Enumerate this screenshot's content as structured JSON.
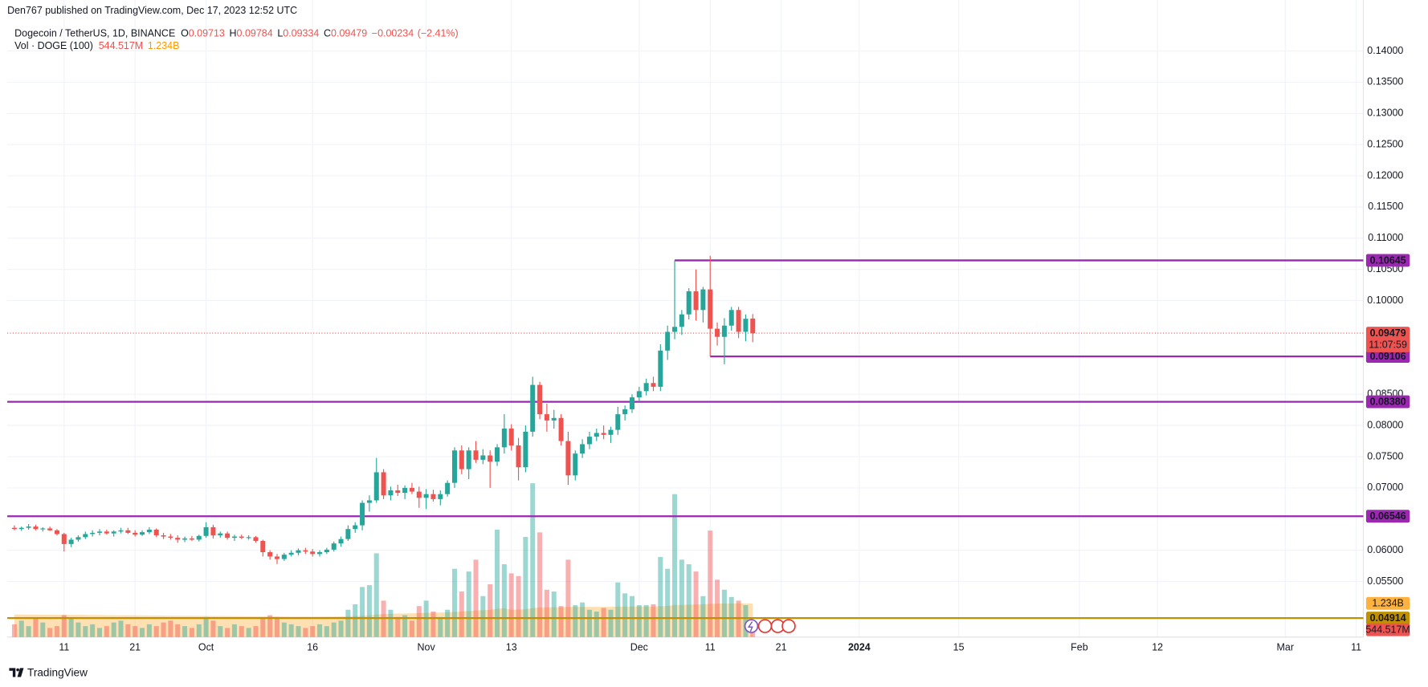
{
  "header": {
    "published": "Den767 published on TradingView.com, Dec 17, 2023 12:52 UTC"
  },
  "footer": {
    "brand": "TradingView"
  },
  "chart_data": {
    "type": "candlestick",
    "title": "Dogecoin / TetherUS, 1D, BINANCE",
    "ohlc_keys": [
      "O",
      "H",
      "L",
      "C"
    ],
    "change": "−0.00234",
    "change_pct": "(−2.41%)",
    "countdown": "11:07:59",
    "up_color": "#26a69a",
    "down_color": "#ef5350",
    "grid": true,
    "x": [
      "2023-09-04",
      "2023-09-05",
      "2023-09-06",
      "2023-09-07",
      "2023-09-08",
      "2023-09-09",
      "2023-09-10",
      "2023-09-11",
      "2023-09-12",
      "2023-09-13",
      "2023-09-14",
      "2023-09-15",
      "2023-09-16",
      "2023-09-17",
      "2023-09-18",
      "2023-09-19",
      "2023-09-20",
      "2023-09-21",
      "2023-09-22",
      "2023-09-23",
      "2023-09-24",
      "2023-09-25",
      "2023-09-26",
      "2023-09-27",
      "2023-09-28",
      "2023-09-29",
      "2023-09-30",
      "2023-10-01",
      "2023-10-02",
      "2023-10-03",
      "2023-10-04",
      "2023-10-05",
      "2023-10-06",
      "2023-10-07",
      "2023-10-08",
      "2023-10-09",
      "2023-10-10",
      "2023-10-11",
      "2023-10-12",
      "2023-10-13",
      "2023-10-14",
      "2023-10-15",
      "2023-10-16",
      "2023-10-17",
      "2023-10-18",
      "2023-10-19",
      "2023-10-20",
      "2023-10-21",
      "2023-10-22",
      "2023-10-23",
      "2023-10-24",
      "2023-10-25",
      "2023-10-26",
      "2023-10-27",
      "2023-10-28",
      "2023-10-29",
      "2023-10-30",
      "2023-10-31",
      "2023-11-01",
      "2023-11-02",
      "2023-11-03",
      "2023-11-04",
      "2023-11-05",
      "2023-11-06",
      "2023-11-07",
      "2023-11-08",
      "2023-11-09",
      "2023-11-10",
      "2023-11-11",
      "2023-11-12",
      "2023-11-13",
      "2023-11-14",
      "2023-11-15",
      "2023-11-16",
      "2023-11-17",
      "2023-11-18",
      "2023-11-19",
      "2023-11-20",
      "2023-11-21",
      "2023-11-22",
      "2023-11-23",
      "2023-11-24",
      "2023-11-25",
      "2023-11-26",
      "2023-11-27",
      "2023-11-28",
      "2023-11-29",
      "2023-11-30",
      "2023-12-01",
      "2023-12-02",
      "2023-12-03",
      "2023-12-04",
      "2023-12-05",
      "2023-12-06",
      "2023-12-07",
      "2023-12-08",
      "2023-12-09",
      "2023-12-10",
      "2023-12-11",
      "2023-12-12",
      "2023-12-13",
      "2023-12-14",
      "2023-12-15",
      "2023-12-16",
      "2023-12-17"
    ],
    "open": [
      0.0636,
      0.0634,
      0.0636,
      0.0638,
      0.0634,
      0.0635,
      0.0632,
      0.0626,
      0.061,
      0.0617,
      0.0621,
      0.0626,
      0.0628,
      0.063,
      0.0627,
      0.063,
      0.0632,
      0.0628,
      0.0625,
      0.0629,
      0.0633,
      0.0624,
      0.0622,
      0.062,
      0.0617,
      0.0619,
      0.0617,
      0.0623,
      0.0637,
      0.0624,
      0.0627,
      0.062,
      0.0622,
      0.062,
      0.0621,
      0.0615,
      0.0597,
      0.059,
      0.0586,
      0.0593,
      0.0596,
      0.06,
      0.0598,
      0.0594,
      0.0597,
      0.0601,
      0.0611,
      0.0618,
      0.0634,
      0.064,
      0.0676,
      0.068,
      0.0725,
      0.0688,
      0.0696,
      0.0692,
      0.07,
      0.0694,
      0.0684,
      0.069,
      0.0682,
      0.069,
      0.0708,
      0.076,
      0.073,
      0.076,
      0.0745,
      0.0752,
      0.0742,
      0.0765,
      0.0795,
      0.0768,
      0.0733,
      0.079,
      0.0865,
      0.0818,
      0.0808,
      0.0812,
      0.0775,
      0.072,
      0.0755,
      0.077,
      0.0782,
      0.0788,
      0.0785,
      0.0793,
      0.0818,
      0.0826,
      0.0845,
      0.0855,
      0.0868,
      0.0862,
      0.092,
      0.095,
      0.0958,
      0.0978,
      0.1015,
      0.0985,
      0.1018,
      0.0955,
      0.0942,
      0.096,
      0.0985,
      0.095,
      0.09713
    ],
    "high": [
      0.064,
      0.0638,
      0.0642,
      0.0641,
      0.0637,
      0.0638,
      0.0634,
      0.0628,
      0.062,
      0.0624,
      0.063,
      0.0632,
      0.0634,
      0.0633,
      0.0632,
      0.0636,
      0.0636,
      0.0632,
      0.0632,
      0.0637,
      0.0635,
      0.0628,
      0.0626,
      0.0624,
      0.0622,
      0.0623,
      0.0625,
      0.0645,
      0.0641,
      0.063,
      0.063,
      0.0625,
      0.0625,
      0.0624,
      0.0623,
      0.0617,
      0.06,
      0.0594,
      0.0596,
      0.06,
      0.0603,
      0.0604,
      0.0602,
      0.06,
      0.0604,
      0.0614,
      0.0622,
      0.064,
      0.0645,
      0.068,
      0.0688,
      0.0748,
      0.073,
      0.0702,
      0.0705,
      0.0704,
      0.0708,
      0.0702,
      0.0698,
      0.0697,
      0.0696,
      0.0712,
      0.0765,
      0.0768,
      0.0765,
      0.0775,
      0.0762,
      0.076,
      0.077,
      0.0818,
      0.0802,
      0.078,
      0.08,
      0.0878,
      0.087,
      0.0835,
      0.0825,
      0.0818,
      0.079,
      0.076,
      0.0778,
      0.079,
      0.0795,
      0.08,
      0.0798,
      0.083,
      0.0832,
      0.085,
      0.0862,
      0.0875,
      0.0878,
      0.093,
      0.096,
      0.10645,
      0.0985,
      0.102,
      0.105,
      0.1022,
      0.1072,
      0.0965,
      0.0972,
      0.099,
      0.099,
      0.0978,
      0.09784
    ],
    "low": [
      0.0632,
      0.0631,
      0.0633,
      0.0632,
      0.063,
      0.0631,
      0.0624,
      0.0598,
      0.0605,
      0.0614,
      0.0618,
      0.0622,
      0.0624,
      0.0625,
      0.0622,
      0.0627,
      0.0626,
      0.0622,
      0.0623,
      0.0626,
      0.0621,
      0.0618,
      0.0617,
      0.0612,
      0.0613,
      0.0615,
      0.0614,
      0.062,
      0.0619,
      0.062,
      0.0617,
      0.0615,
      0.0618,
      0.0617,
      0.0612,
      0.059,
      0.0585,
      0.0578,
      0.0583,
      0.059,
      0.0592,
      0.0594,
      0.059,
      0.059,
      0.0594,
      0.0598,
      0.0606,
      0.0615,
      0.0628,
      0.0632,
      0.0662,
      0.0676,
      0.0682,
      0.068,
      0.0687,
      0.0682,
      0.069,
      0.0668,
      0.0666,
      0.0678,
      0.0672,
      0.0686,
      0.07,
      0.0722,
      0.0714,
      0.074,
      0.0738,
      0.07,
      0.0735,
      0.0755,
      0.076,
      0.0712,
      0.0725,
      0.0782,
      0.081,
      0.079,
      0.0795,
      0.0768,
      0.0705,
      0.0712,
      0.0748,
      0.0762,
      0.0775,
      0.0778,
      0.0772,
      0.0785,
      0.0808,
      0.082,
      0.0838,
      0.0848,
      0.0855,
      0.0855,
      0.0905,
      0.0938,
      0.0945,
      0.097,
      0.0968,
      0.0965,
      0.09106,
      0.0928,
      0.0898,
      0.0952,
      0.094,
      0.0935,
      0.09334
    ],
    "close": [
      0.0634,
      0.0636,
      0.0638,
      0.0634,
      0.0635,
      0.0632,
      0.0626,
      0.061,
      0.0617,
      0.0621,
      0.0626,
      0.0628,
      0.063,
      0.0627,
      0.063,
      0.0632,
      0.0628,
      0.0625,
      0.0629,
      0.0633,
      0.0624,
      0.0622,
      0.062,
      0.0617,
      0.0619,
      0.0617,
      0.0623,
      0.0637,
      0.0624,
      0.0627,
      0.062,
      0.0622,
      0.062,
      0.0621,
      0.0615,
      0.0597,
      0.059,
      0.0586,
      0.0593,
      0.0596,
      0.06,
      0.0598,
      0.0594,
      0.0597,
      0.0601,
      0.0611,
      0.0618,
      0.0634,
      0.064,
      0.0676,
      0.068,
      0.0725,
      0.0688,
      0.0696,
      0.0692,
      0.07,
      0.0694,
      0.0684,
      0.069,
      0.0682,
      0.069,
      0.0708,
      0.076,
      0.073,
      0.076,
      0.0745,
      0.0752,
      0.0742,
      0.0765,
      0.0795,
      0.0768,
      0.0733,
      0.079,
      0.0865,
      0.0818,
      0.0808,
      0.0812,
      0.0775,
      0.072,
      0.0755,
      0.077,
      0.0782,
      0.0788,
      0.0785,
      0.0793,
      0.0818,
      0.0826,
      0.0845,
      0.0855,
      0.0868,
      0.0862,
      0.092,
      0.095,
      0.0958,
      0.0978,
      0.1015,
      0.0985,
      0.1018,
      0.0955,
      0.0942,
      0.096,
      0.0985,
      0.095,
      0.0971,
      0.09479
    ],
    "xlim": [
      "2023-09-03",
      "2024-03-12"
    ],
    "xticks": [
      {
        "value": "2023-09-11",
        "label": "11"
      },
      {
        "value": "2023-09-21",
        "label": "21"
      },
      {
        "value": "2023-10-01",
        "label": "Oct"
      },
      {
        "value": "2023-10-16",
        "label": "16"
      },
      {
        "value": "2023-11-01",
        "label": "Nov"
      },
      {
        "value": "2023-11-13",
        "label": "13"
      },
      {
        "value": "2023-12-01",
        "label": "Dec"
      },
      {
        "value": "2023-12-11",
        "label": "11"
      },
      {
        "value": "2023-12-21",
        "label": "21"
      },
      {
        "value": "2024-01-01",
        "label": "2024"
      },
      {
        "value": "2024-01-15",
        "label": "15"
      },
      {
        "value": "2024-02-01",
        "label": "Feb"
      },
      {
        "value": "2024-02-12",
        "label": "12"
      },
      {
        "value": "2024-03-01",
        "label": "Mar"
      },
      {
        "value": "2024-03-11",
        "label": "11"
      }
    ],
    "ylim": [
      0.0461,
      0.14817
    ],
    "yticks": [
      {
        "value": 0.14,
        "label": "0.14000"
      },
      {
        "value": 0.135,
        "label": "0.13500"
      },
      {
        "value": 0.13,
        "label": "0.13000"
      },
      {
        "value": 0.125,
        "label": "0.12500"
      },
      {
        "value": 0.12,
        "label": "0.12000"
      },
      {
        "value": 0.115,
        "label": "0.11500"
      },
      {
        "value": 0.11,
        "label": "0.11000"
      },
      {
        "value": 0.105,
        "label": "0.10500"
      },
      {
        "value": 0.1,
        "label": "0.10000"
      },
      {
        "value": 0.085,
        "label": "0.08500"
      },
      {
        "value": 0.08,
        "label": "0.08000"
      },
      {
        "value": 0.075,
        "label": "0.07500"
      },
      {
        "value": 0.07,
        "label": "0.07000"
      },
      {
        "value": 0.06,
        "label": "0.06000"
      },
      {
        "value": 0.055,
        "label": "0.05500"
      }
    ],
    "levels": [
      {
        "value": 0.10645,
        "start": "2023-12-06",
        "color": "#9c27b0"
      },
      {
        "value": 0.09106,
        "start": "2023-12-11",
        "color": "#9c27b0"
      },
      {
        "value": 0.0838,
        "label": "0.08380",
        "color": "#9c27b0"
      },
      {
        "value": 0.06546,
        "color": "#9c27b0"
      },
      {
        "value": 0.04914,
        "color": "#bf9000"
      }
    ],
    "y2lim": [
      0,
      23380000000
    ],
    "volume": {
      "title": "Vol · DOGE (100)",
      "axis": "y2",
      "values": [
        468000000,
        601000000,
        401000000,
        668000000,
        534000000,
        334000000,
        401000000,
        802000000,
        668000000,
        534000000,
        401000000,
        468000000,
        334000000,
        401000000,
        534000000,
        601000000,
        468000000,
        401000000,
        334000000,
        468000000,
        401000000,
        534000000,
        601000000,
        468000000,
        401000000,
        334000000,
        468000000,
        735000000,
        601000000,
        401000000,
        334000000,
        468000000,
        401000000,
        334000000,
        401000000,
        668000000,
        802000000,
        735000000,
        534000000,
        468000000,
        401000000,
        334000000,
        401000000,
        468000000,
        401000000,
        534000000,
        601000000,
        1002000000,
        1202000000,
        1837000000,
        1904000000,
        3073000000,
        1336000000,
        1002000000,
        735000000,
        802000000,
        601000000,
        1136000000,
        1336000000,
        935000000,
        735000000,
        1002000000,
        2505000000,
        1670000000,
        2405000000,
        2839000000,
        1503000000,
        1937000000,
        3941000000,
        2672000000,
        2338000000,
        2238000000,
        3674000000,
        5645000000,
        3841000000,
        1737000000,
        1670000000,
        1136000000,
        2839000000,
        1169000000,
        1269000000,
        1002000000,
        935000000,
        1069000000,
        1002000000,
        2004000000,
        1603000000,
        1503000000,
        1169000000,
        1169000000,
        1202000000,
        2939000000,
        2505000000,
        5244000000,
        2839000000,
        2672000000,
        2405000000,
        1503000000,
        3908000000,
        2104000000,
        1737000000,
        1470000000,
        1336000000,
        1169000000,
        544517000
      ],
      "value_labels": [
        null,
        null,
        null,
        null,
        null,
        null,
        null,
        null,
        null,
        null,
        null,
        null,
        null,
        null,
        null,
        null,
        null,
        null,
        null,
        null,
        null,
        null,
        null,
        null,
        null,
        null,
        null,
        null,
        null,
        null,
        null,
        null,
        null,
        null,
        null,
        null,
        null,
        null,
        null,
        null,
        null,
        null,
        null,
        null,
        null,
        null,
        null,
        null,
        null,
        null,
        null,
        null,
        null,
        null,
        null,
        null,
        null,
        null,
        null,
        null,
        null,
        null,
        null,
        null,
        null,
        null,
        null,
        null,
        null,
        null,
        null,
        null,
        null,
        null,
        null,
        null,
        null,
        null,
        null,
        null,
        null,
        null,
        null,
        null,
        null,
        null,
        null,
        null,
        null,
        null,
        null,
        null,
        null,
        null,
        null,
        null,
        null,
        null,
        null,
        null,
        null,
        null,
        null,
        null,
        "544.517M"
      ],
      "ma": {
        "color": "#ff9800",
        "values": [
          830000000,
          828000000,
          826000000,
          824000000,
          822000000,
          820000000,
          818000000,
          816000000,
          814000000,
          812000000,
          810000000,
          808000000,
          806000000,
          804000000,
          802000000,
          800000000,
          798000000,
          796000000,
          794000000,
          792000000,
          790000000,
          788000000,
          786000000,
          784000000,
          782000000,
          780000000,
          778000000,
          776000000,
          774000000,
          772000000,
          770000000,
          768000000,
          766000000,
          764000000,
          762000000,
          760000000,
          758000000,
          756000000,
          754000000,
          752000000,
          750000000,
          750000000,
          750000000,
          752000000,
          754000000,
          756000000,
          760000000,
          766000000,
          774000000,
          785000000,
          800000000,
          830000000,
          845000000,
          855000000,
          860000000,
          865000000,
          870000000,
          878000000,
          888000000,
          895000000,
          900000000,
          905000000,
          925000000,
          935000000,
          955000000,
          975000000,
          985000000,
          1000000000,
          1035000000,
          1060000000,
          1000000000,
          1010000000,
          1025000000,
          1060000000,
          1085000000,
          1090000000,
          1095000000,
          1095000000,
          1110000000,
          1110000000,
          1110000000,
          1110000000,
          1110000000,
          1110000000,
          1110000000,
          1115000000,
          1120000000,
          1120000000,
          1120000000,
          1120000000,
          1120000000,
          1130000000,
          1140000000,
          1175000000,
          1180000000,
          1190000000,
          1195000000,
          1200000000,
          1220000000,
          1225000000,
          1228000000,
          1230000000,
          1232000000,
          1234000000,
          1234000000
        ],
        "value_labels": [
          null,
          null,
          null,
          null,
          null,
          null,
          null,
          null,
          null,
          null,
          null,
          null,
          null,
          null,
          null,
          null,
          null,
          null,
          null,
          null,
          null,
          null,
          null,
          null,
          null,
          null,
          null,
          null,
          null,
          null,
          null,
          null,
          null,
          null,
          null,
          null,
          null,
          null,
          null,
          null,
          null,
          null,
          null,
          null,
          null,
          null,
          null,
          null,
          null,
          null,
          null,
          null,
          null,
          null,
          null,
          null,
          null,
          null,
          null,
          null,
          null,
          null,
          null,
          null,
          null,
          null,
          null,
          null,
          null,
          null,
          null,
          null,
          null,
          null,
          null,
          null,
          null,
          null,
          null,
          null,
          null,
          null,
          null,
          null,
          null,
          null,
          null,
          null,
          null,
          null,
          null,
          null,
          null,
          null,
          null,
          null,
          null,
          null,
          null,
          null,
          null,
          null,
          null,
          null,
          "1.234B"
        ]
      }
    }
  }
}
